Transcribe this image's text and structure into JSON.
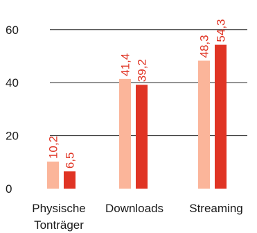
{
  "chart_data": {
    "type": "bar",
    "categories": [
      [
        "Physische",
        "Tonträger"
      ],
      [
        "Downloads"
      ],
      [
        "Streaming"
      ]
    ],
    "series": [
      {
        "values": [
          10.2,
          41.4,
          48.3
        ],
        "labels": [
          "10,2",
          "41,4",
          "48,3"
        ],
        "color": "#fbb59a"
      },
      {
        "values": [
          6.5,
          39.2,
          54.3
        ],
        "labels": [
          "6,5",
          "39,2",
          "54,3"
        ],
        "color": "#e03424"
      }
    ],
    "y_ticks": [
      {
        "value": 0,
        "label": "0"
      },
      {
        "value": 20,
        "label": "20"
      },
      {
        "value": 40,
        "label": "40"
      },
      {
        "value": 60,
        "label": "60"
      }
    ],
    "ylim": [
      0,
      60
    ],
    "grid": true,
    "label_color": "#e03424",
    "axis_text_color": "#1a1a1a",
    "grid_color": "#222222"
  }
}
